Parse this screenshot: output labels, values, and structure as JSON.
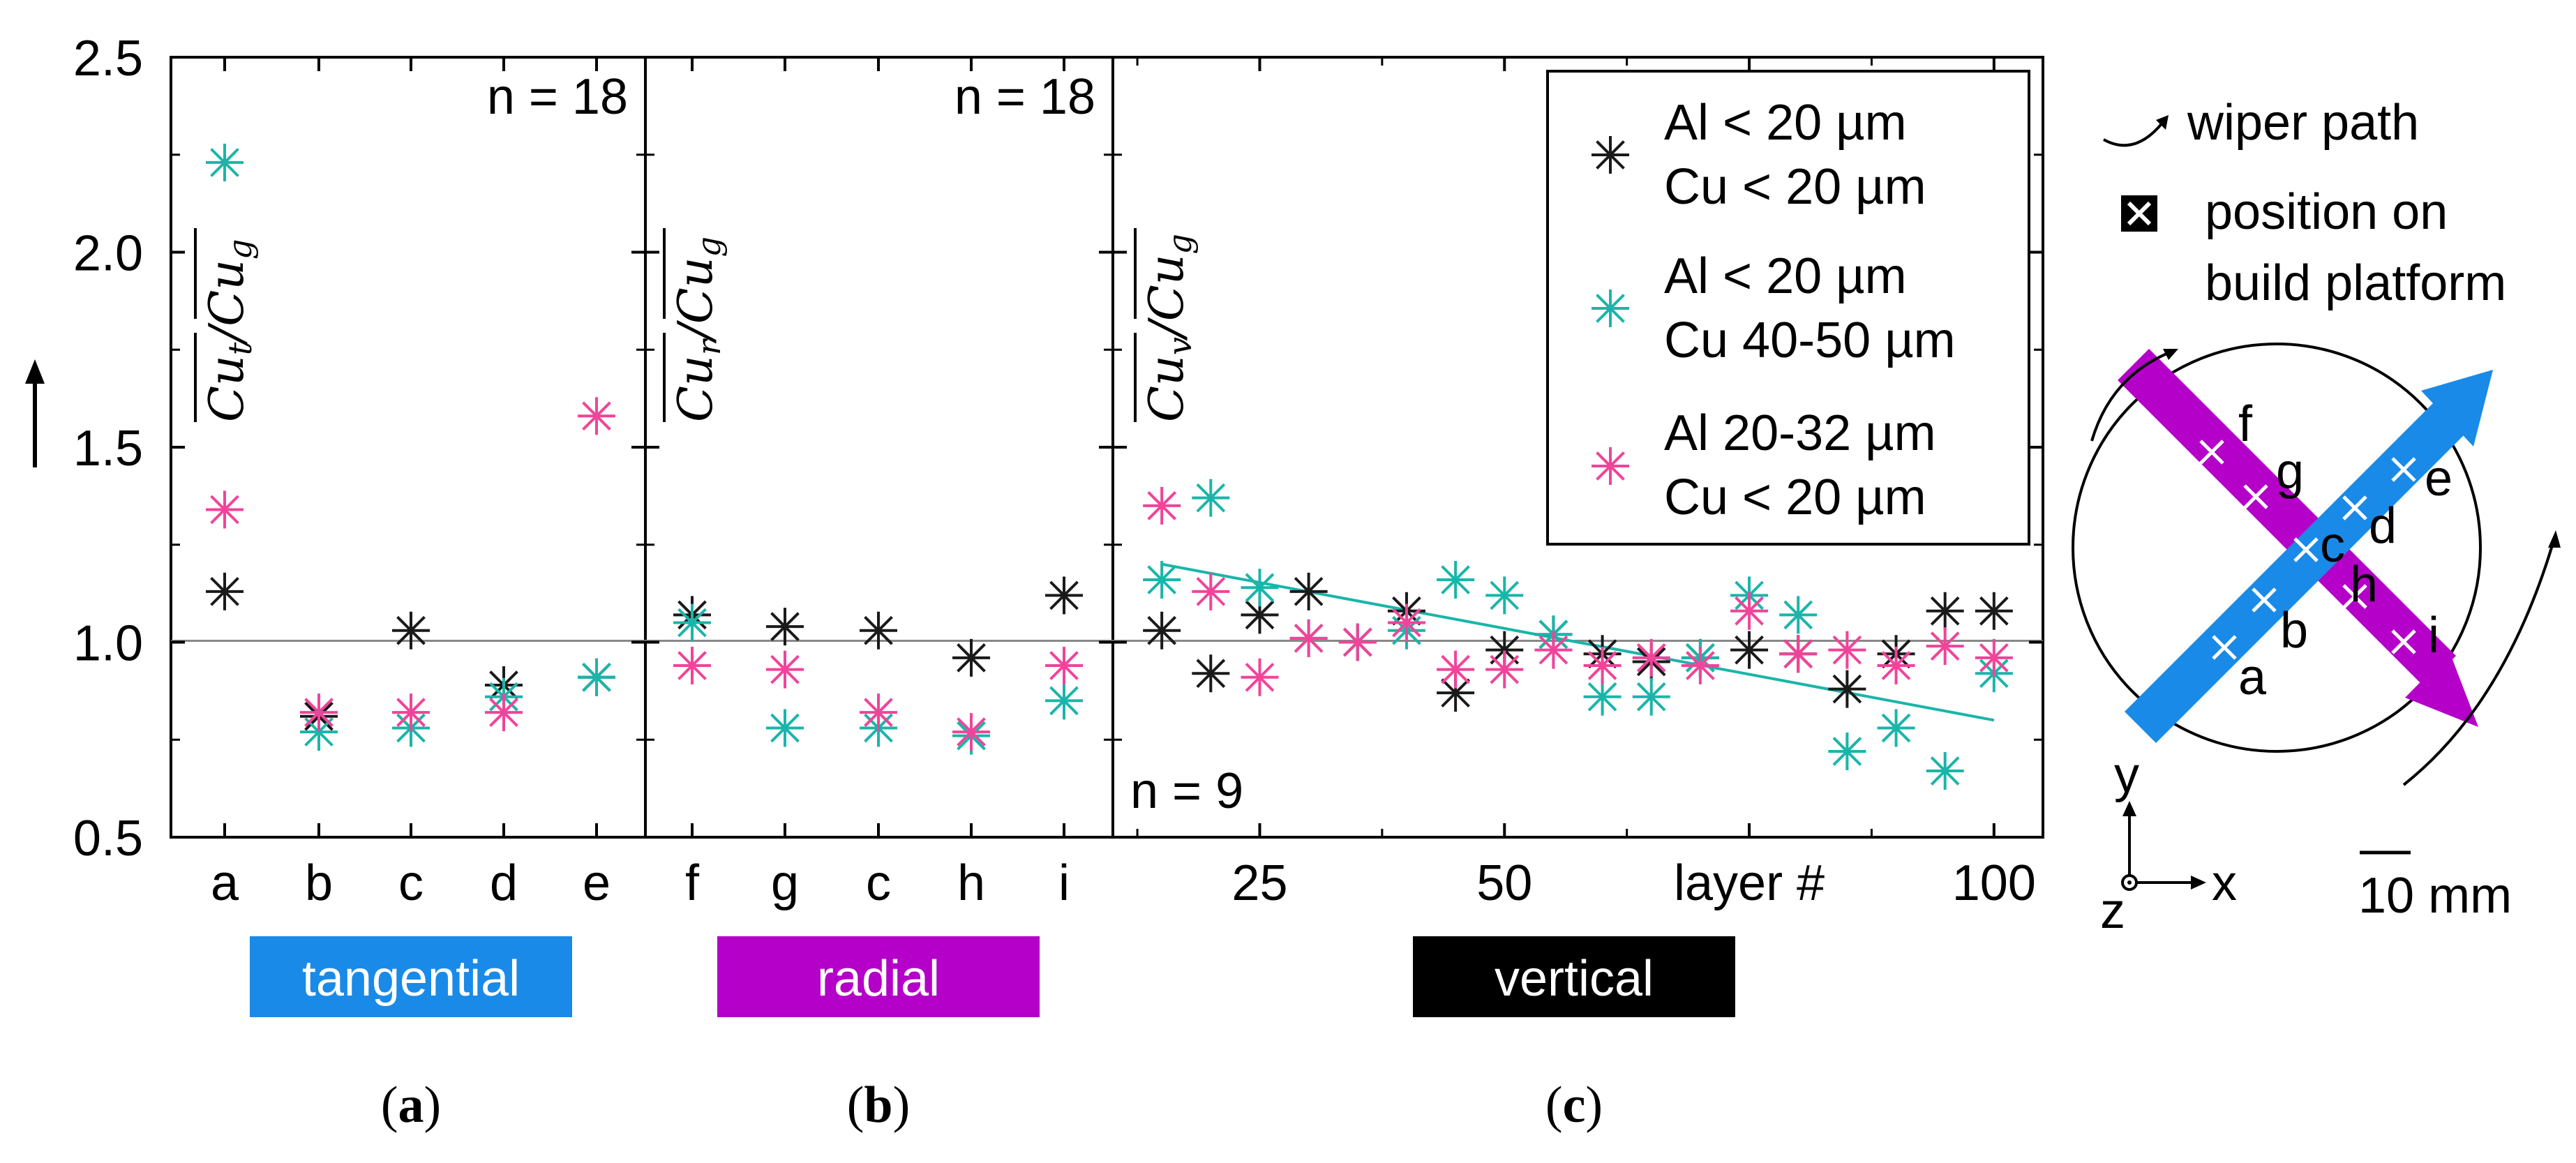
{
  "chart_data": {
    "type": "scatter",
    "y_axis": {
      "range": [
        0.5,
        2.5
      ],
      "ticks": [
        "0.5",
        "1.0",
        "1.5",
        "2.0",
        "2.5"
      ],
      "reference_line": 1.0
    },
    "series_colors": {
      "black": "#1a1a1a",
      "teal": "#1ab5aa",
      "pink": "#f0449a"
    },
    "legend": [
      {
        "line1": "Al < 20 µm",
        "line2": "Cu < 20 µm",
        "color": "#1a1a1a"
      },
      {
        "line1": "Al < 20 µm",
        "line2": "Cu 40-50 µm",
        "color": "#1ab5aa"
      },
      {
        "line1": "Al 20-32 µm",
        "line2": "Cu < 20 µm",
        "color": "#f0449a"
      }
    ],
    "panels": [
      {
        "id": "a",
        "n_label": "n = 18",
        "ratio_label": "Cut/Cug",
        "ratio_sub": "t",
        "categories": [
          "a",
          "b",
          "c",
          "d",
          "e"
        ],
        "series": [
          {
            "name": "Al < 20 µm, Cu < 20 µm",
            "values": [
              1.13,
              0.81,
              1.03,
              0.89,
              0.91
            ]
          },
          {
            "name": "Al < 20 µm, Cu 40-50 µm",
            "values": [
              2.23,
              0.77,
              0.78,
              0.86,
              0.91
            ]
          },
          {
            "name": "Al 20-32 µm, Cu < 20 µm",
            "values": [
              1.34,
              0.82,
              0.82,
              0.82,
              1.58
            ]
          }
        ]
      },
      {
        "id": "b",
        "n_label": "n = 18",
        "ratio_label": "Cur/Cug",
        "ratio_sub": "r",
        "categories": [
          "f",
          "g",
          "c",
          "h",
          "i"
        ],
        "series": [
          {
            "name": "Al < 20 µm, Cu < 20 µm",
            "values": [
              1.07,
              1.04,
              1.03,
              0.96,
              1.12
            ]
          },
          {
            "name": "Al < 20 µm, Cu 40-50 µm",
            "values": [
              1.05,
              0.78,
              0.78,
              0.76,
              0.85
            ]
          },
          {
            "name": "Al 20-32 µm, Cu < 20 µm",
            "values": [
              0.94,
              0.93,
              0.82,
              0.77,
              0.94
            ]
          }
        ]
      },
      {
        "id": "c",
        "n_label": "n = 9",
        "ratio_label": "Cuv/Cug",
        "ratio_sub": "v",
        "x_range": [
          10,
          105
        ],
        "x_ticks": [
          {
            "value": 25,
            "label": "25"
          },
          {
            "value": 50,
            "label": "50"
          },
          {
            "value": 75,
            "label": "layer #"
          },
          {
            "value": 100,
            "label": "100"
          }
        ],
        "x_minor_ticks": [
          12.5,
          37.5,
          62.5,
          87.5
        ],
        "x": [
          15,
          20,
          25,
          30,
          35,
          40,
          45,
          50,
          55,
          60,
          65,
          70,
          75,
          80,
          85,
          90,
          95,
          100
        ],
        "series": [
          {
            "name": "Al < 20 µm, Cu < 20 µm",
            "values": [
              1.03,
              0.92,
              1.07,
              1.13,
              1.0,
              1.08,
              0.87,
              0.98,
              1.02,
              0.97,
              0.95,
              0.96,
              0.98,
              0.97,
              0.88,
              0.97,
              1.08,
              1.08
            ]
          },
          {
            "name": "Al < 20 µm, Cu 40-50 µm",
            "values": [
              1.16,
              1.37,
              1.14,
              1.01,
              1.0,
              1.03,
              1.16,
              1.12,
              1.02,
              0.86,
              0.86,
              0.96,
              1.12,
              1.07,
              0.72,
              0.78,
              0.67,
              0.92
            ]
          },
          {
            "name": "Al 20-32 µm, Cu < 20 µm",
            "values": [
              1.35,
              1.13,
              0.91,
              1.01,
              1.0,
              1.05,
              0.93,
              0.93,
              0.98,
              0.94,
              0.96,
              0.94,
              1.08,
              0.97,
              0.98,
              0.94,
              0.99,
              0.96
            ]
          }
        ],
        "trend_line": {
          "x": [
            15,
            100
          ],
          "y": [
            1.2,
            0.8
          ],
          "color": "#1ab5aa"
        }
      }
    ],
    "category_bars": [
      {
        "label": "tangential",
        "color": "#1a8ae8",
        "text_color": "#ffffff"
      },
      {
        "label": "radial",
        "color": "#b400c8",
        "text_color": "#ffffff"
      },
      {
        "label": "vertical",
        "color": "#000000",
        "text_color": "#ffffff"
      }
    ],
    "panel_labels": [
      "a",
      "b",
      "c"
    ]
  },
  "schematic": {
    "wiper_path_label": "wiper path",
    "position_label_1": "position on",
    "position_label_2": "build platform",
    "tangential_points": [
      "a",
      "b",
      "c",
      "d",
      "e"
    ],
    "radial_points": [
      "f",
      "g",
      "h",
      "i"
    ],
    "axis_y": "y",
    "axis_x": "x",
    "axis_z": "z",
    "scale_label": "10 mm",
    "tangential_color": "#1a8ae8",
    "radial_color": "#b400c8"
  }
}
